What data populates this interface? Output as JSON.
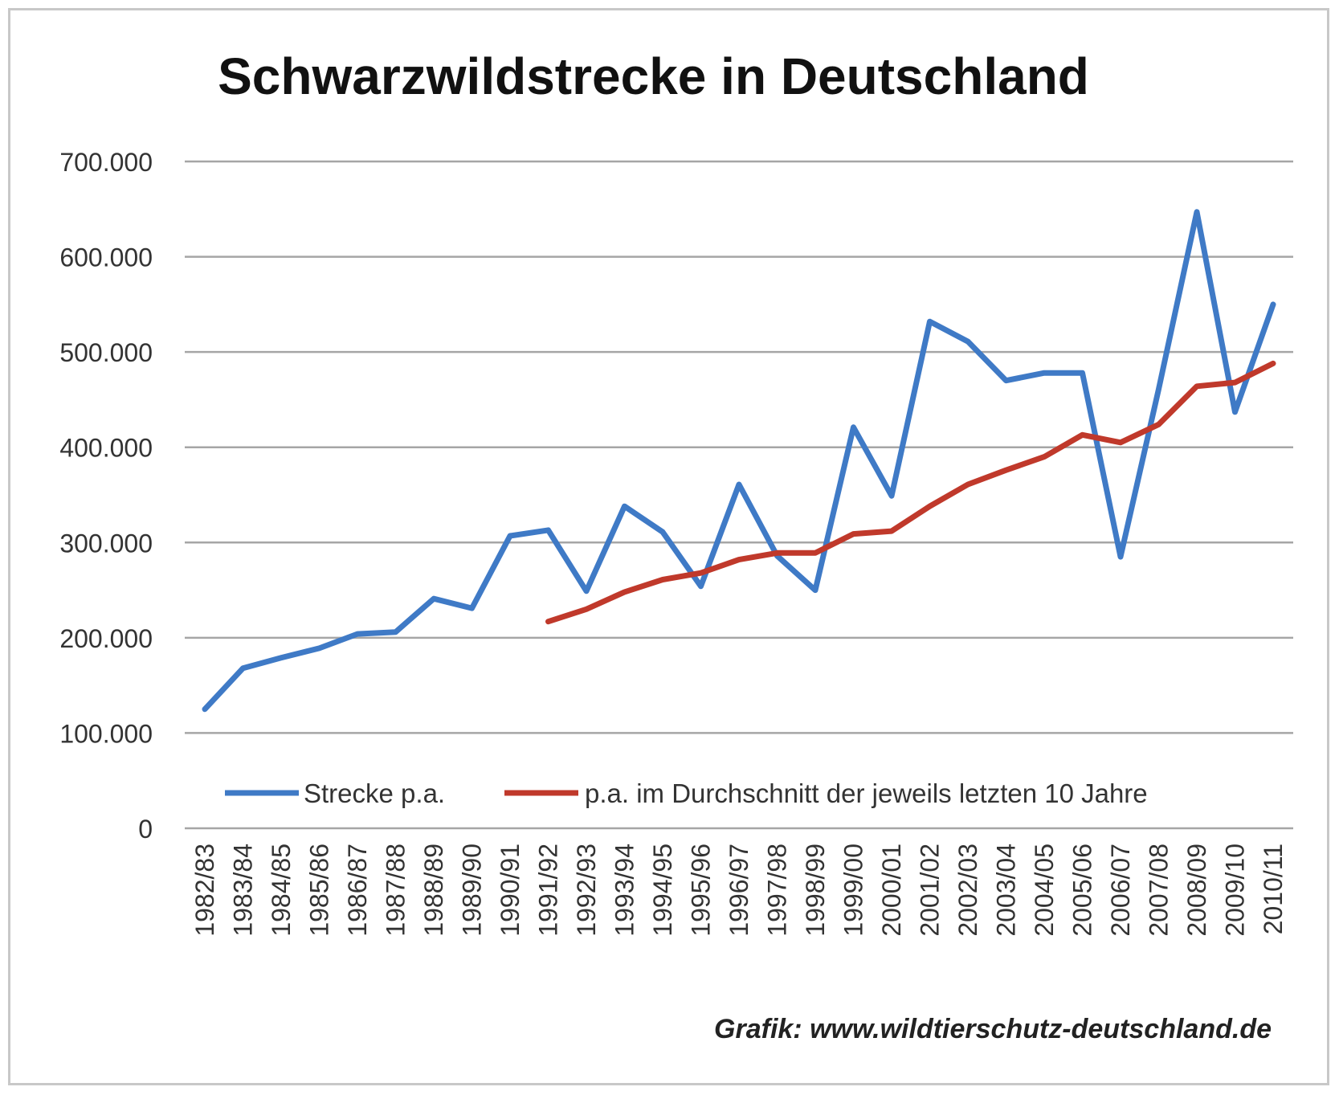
{
  "chart_data": {
    "type": "line",
    "title": "Schwarzwildstrecke in Deutschland",
    "credit": "Grafik: www.wildtierschutz-deutschland.de",
    "xlabel": "",
    "ylabel": "",
    "ylim": [
      0,
      700000
    ],
    "yticks": [
      0,
      100000,
      200000,
      300000,
      400000,
      500000,
      600000,
      700000
    ],
    "ytick_labels": [
      "0",
      "100.000",
      "200.000",
      "300.000",
      "400.000",
      "500.000",
      "600.000",
      "700.000"
    ],
    "grid": true,
    "legend_position": "bottom-inside",
    "categories": [
      "1982/83",
      "1983/84",
      "1984/85",
      "1985/86",
      "1986/87",
      "1987/88",
      "1988/89",
      "1989/90",
      "1990/91",
      "1991/92",
      "1992/93",
      "1993/94",
      "1994/95",
      "1995/96",
      "1996/97",
      "1997/98",
      "1998/99",
      "1999/00",
      "2000/01",
      "2001/02",
      "2002/03",
      "2003/04",
      "2004/05",
      "2005/06",
      "2006/07",
      "2007/08",
      "2008/09",
      "2009/10",
      "2010/11"
    ],
    "series": [
      {
        "name": "Strecke p.a.",
        "color": "#3f7ac6",
        "values": [
          125000,
          168000,
          179000,
          189000,
          204000,
          206000,
          241000,
          231000,
          307000,
          313000,
          249000,
          338000,
          311000,
          254000,
          361000,
          286000,
          250000,
          421000,
          349000,
          532000,
          511000,
          470000,
          478000,
          478000,
          285000,
          461000,
          647000,
          437000,
          550000
        ]
      },
      {
        "name": "p.a. im Durchschnitt der jeweils letzten 10 Jahre",
        "color": "#c0392b",
        "values": [
          null,
          null,
          null,
          null,
          null,
          null,
          null,
          null,
          null,
          217000,
          230000,
          248000,
          261000,
          268000,
          282000,
          289000,
          289000,
          309000,
          312000,
          338000,
          361000,
          376000,
          390000,
          413000,
          405000,
          424000,
          464000,
          468000,
          488000
        ]
      }
    ]
  }
}
